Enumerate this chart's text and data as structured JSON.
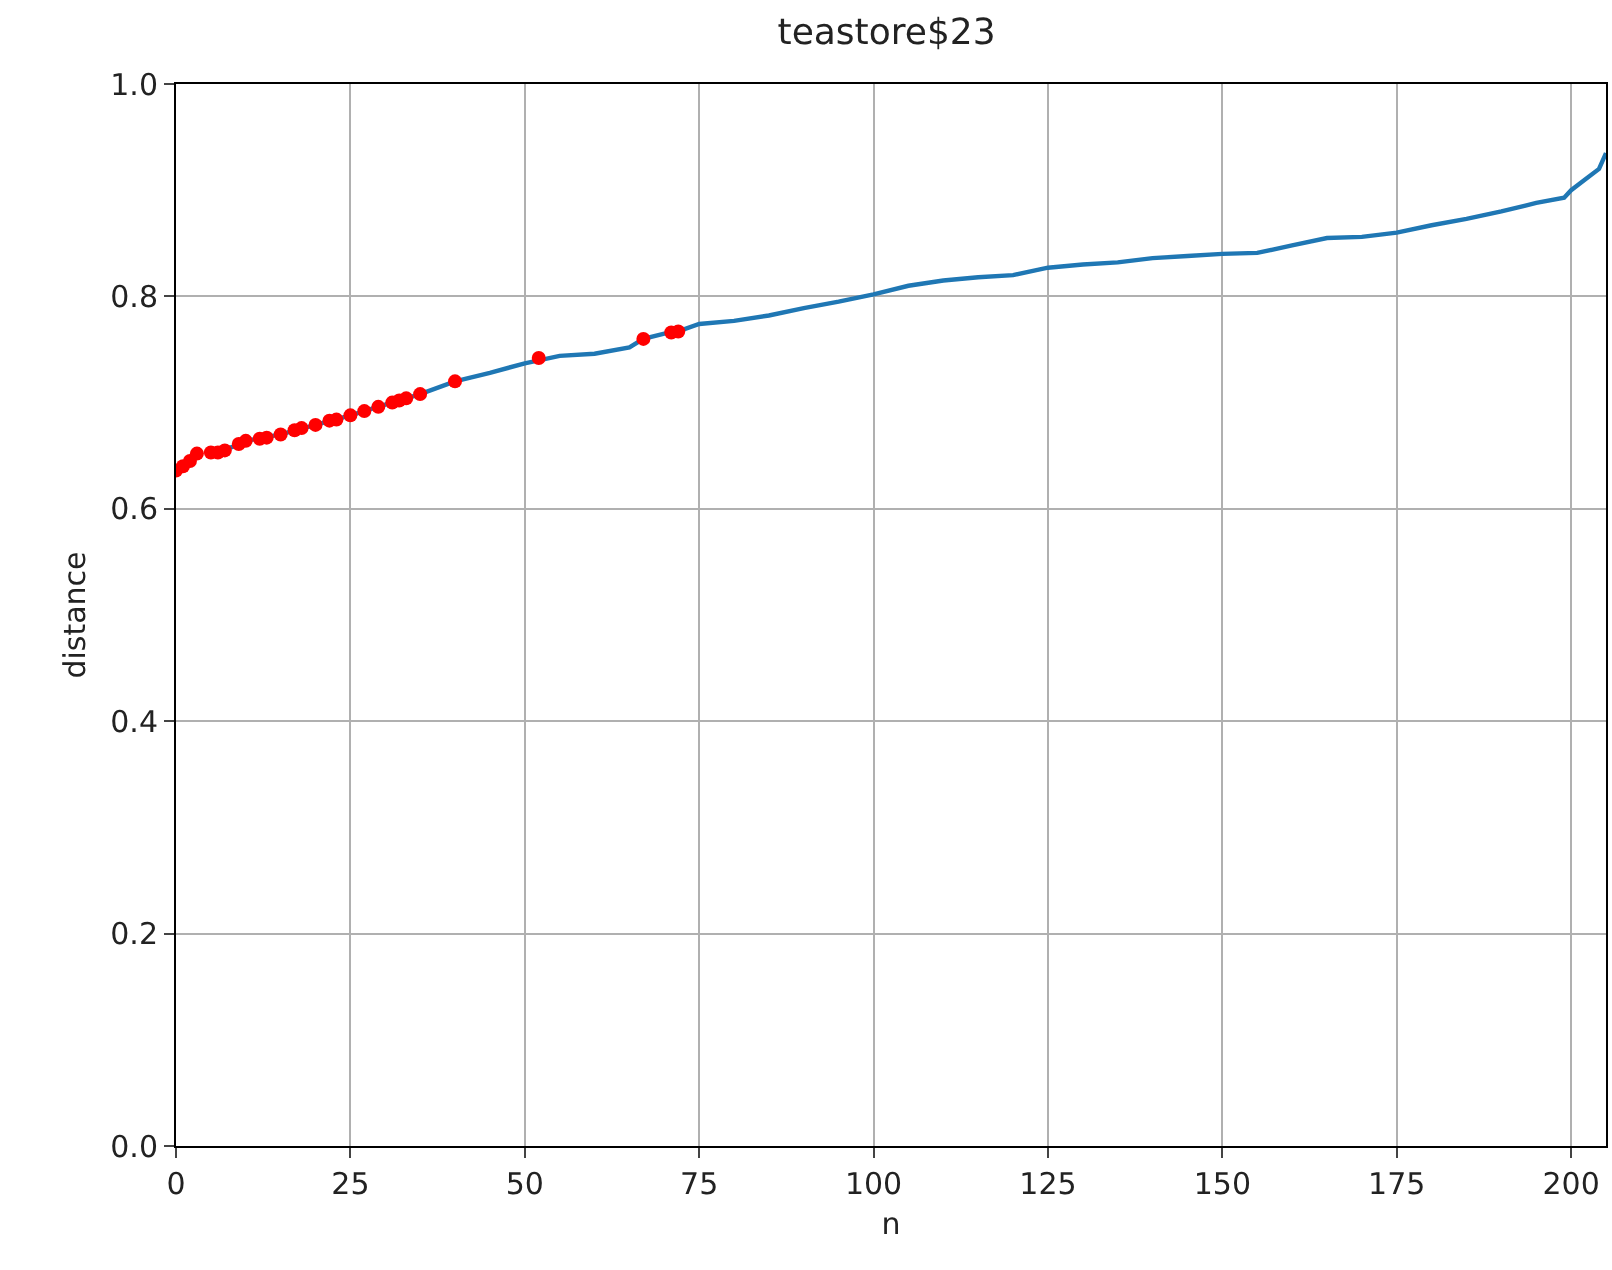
{
  "chart_data": {
    "type": "line",
    "title": "teastore$23",
    "xlabel": "n",
    "ylabel": "distance",
    "xlim": [
      0,
      205
    ],
    "xticks": [
      0,
      25,
      50,
      75,
      100,
      125,
      150,
      175,
      200
    ],
    "ylim": [
      0,
      1
    ],
    "yticks": [
      {
        "value": 0,
        "label": "0.0"
      },
      0.2,
      0.4,
      0.6,
      0.8,
      {
        "value": 1,
        "label": "1.0"
      }
    ],
    "grid": true,
    "series": [
      {
        "color": "#1f77b4",
        "marker": "none",
        "x": [
          5,
          8,
          10,
          15,
          20,
          25,
          30,
          35,
          40,
          45,
          50,
          55,
          60,
          65,
          67,
          70,
          72,
          75,
          80,
          85,
          90,
          95,
          100,
          105,
          110,
          115,
          120,
          125,
          130,
          135,
          140,
          145,
          150,
          155,
          160,
          165,
          170,
          175,
          180,
          185,
          190,
          195,
          199,
          200,
          202,
          204,
          205
        ],
        "values": [
          0.653,
          0.658,
          0.664,
          0.67,
          0.679,
          0.688,
          0.698,
          0.708,
          0.72,
          0.728,
          0.737,
          0.744,
          0.746,
          0.752,
          0.76,
          0.765,
          0.767,
          0.774,
          0.777,
          0.782,
          0.789,
          0.795,
          0.802,
          0.81,
          0.815,
          0.818,
          0.82,
          0.827,
          0.83,
          0.832,
          0.836,
          0.838,
          0.84,
          0.841,
          0.848,
          0.855,
          0.856,
          0.86,
          0.867,
          0.873,
          0.88,
          0.888,
          0.893,
          0.9,
          0.91,
          0.92,
          0.935
        ]
      },
      {
        "type": "scatter",
        "color": "#ff0000",
        "marker": "circle",
        "x": [
          0,
          1,
          2,
          3,
          5,
          6,
          7,
          9,
          10,
          12,
          13,
          15,
          17,
          18,
          20,
          22,
          23,
          25,
          27,
          29,
          31,
          32,
          33,
          35,
          40,
          52,
          67,
          71,
          72
        ],
        "values": [
          0.636,
          0.64,
          0.645,
          0.652,
          0.653,
          0.653,
          0.655,
          0.661,
          0.664,
          0.666,
          0.667,
          0.67,
          0.674,
          0.676,
          0.679,
          0.683,
          0.684,
          0.688,
          0.692,
          0.696,
          0.7,
          0.702,
          0.704,
          0.708,
          0.72,
          0.742,
          0.76,
          0.766,
          0.767
        ]
      }
    ]
  }
}
